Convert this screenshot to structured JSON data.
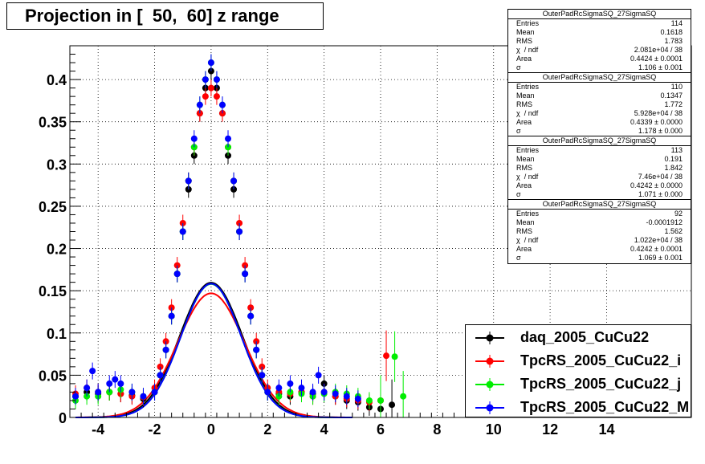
{
  "title": "Projection in [  50,  60] z range",
  "stats": [
    {
      "name": "OuterPadRcSigmaSQ_27SigmaSQ",
      "rows": [
        [
          "Entries",
          "114"
        ],
        [
          "Mean",
          "0.1618"
        ],
        [
          "RMS",
          "1.783"
        ],
        [
          "χ  / ndf",
          "2.081e+04 / 38"
        ],
        [
          "Area",
          "0.4424 ± 0.0001"
        ],
        [
          "σ",
          "1.106 ± 0.001"
        ]
      ]
    },
    {
      "name": "OuterPadRcSigmaSQ_27SigmaSQ",
      "rows": [
        [
          "Entries",
          "110"
        ],
        [
          "Mean",
          "0.1347"
        ],
        [
          "RMS",
          "1.772"
        ],
        [
          "χ  / ndf",
          "5.928e+04 / 38"
        ],
        [
          "Area",
          "0.4339 ± 0.0000"
        ],
        [
          "σ",
          "1.178 ± 0.000"
        ]
      ]
    },
    {
      "name": "OuterPadRcSigmaSQ_27SigmaSQ",
      "rows": [
        [
          "Entries",
          "113"
        ],
        [
          "Mean",
          "0.191"
        ],
        [
          "RMS",
          "1.842"
        ],
        [
          "χ  / ndf",
          "7.46e+04 / 38"
        ],
        [
          "Area",
          "0.4242 ± 0.0000"
        ],
        [
          "σ",
          "1.071 ± 0.000"
        ]
      ]
    },
    {
      "name": "OuterPadRcSigmaSQ_27SigmaSQ",
      "rows": [
        [
          "Entries",
          "92"
        ],
        [
          "Mean",
          "-0.0001912"
        ],
        [
          "RMS",
          "1.562"
        ],
        [
          "χ  / ndf",
          "1.022e+04 / 38"
        ],
        [
          "Area",
          "0.4242 ± 0.0001"
        ],
        [
          "σ",
          "1.069 ± 0.001"
        ]
      ]
    }
  ],
  "legend": [
    {
      "label": "daq_2005_CuCu22",
      "color": "#000000"
    },
    {
      "label": "TpcRS_2005_CuCu22_i",
      "color": "#ff0000"
    },
    {
      "label": "TpcRS_2005_CuCu22_j",
      "color": "#00ee00"
    },
    {
      "label": "TpcRS_2005_CuCu22_M",
      "color": "#0000ff"
    }
  ],
  "chart_data": {
    "type": "scatter",
    "title": "Projection in [  50,  60] z range",
    "xlabel": "",
    "ylabel": "",
    "xlim": [
      -5,
      17
    ],
    "ylim": [
      0,
      0.44
    ],
    "x_ticks": [
      -4,
      -2,
      0,
      2,
      4,
      6,
      8,
      10,
      12,
      14
    ],
    "y_ticks": [
      0,
      0.05,
      0.1,
      0.15,
      0.2,
      0.25,
      0.3,
      0.35,
      0.4
    ],
    "y_tick_labels": [
      "0",
      "0.05",
      "0.1",
      "0.15",
      "0.2",
      "0.25",
      "0.3",
      "0.35",
      "0.4"
    ],
    "grid": true,
    "legend_position": "bottom-right",
    "series": [
      {
        "name": "daq_2005_CuCu22",
        "color": "#000000",
        "fit": {
          "area": 0.4424,
          "sigma": 1.106
        },
        "x": [
          -4.8,
          -4.4,
          -4.0,
          -3.6,
          -3.2,
          -2.8,
          -2.4,
          -2.0,
          -1.8,
          -1.6,
          -1.4,
          -1.2,
          -1.0,
          -0.8,
          -0.6,
          -0.4,
          -0.2,
          0.0,
          0.2,
          0.4,
          0.6,
          0.8,
          1.0,
          1.2,
          1.4,
          1.6,
          1.8,
          2.0,
          2.4,
          2.8,
          3.2,
          3.6,
          4.0,
          4.4,
          4.8,
          5.2,
          5.6,
          6.0,
          6.4
        ],
        "y": [
          0.025,
          0.03,
          0.028,
          0.03,
          0.028,
          0.026,
          0.022,
          0.03,
          0.05,
          0.08,
          0.12,
          0.17,
          0.22,
          0.27,
          0.31,
          0.36,
          0.39,
          0.41,
          0.39,
          0.36,
          0.31,
          0.27,
          0.22,
          0.17,
          0.12,
          0.08,
          0.05,
          0.03,
          0.028,
          0.025,
          0.03,
          0.028,
          0.04,
          0.025,
          0.02,
          0.018,
          0.012,
          0.01,
          0.015
        ]
      },
      {
        "name": "TpcRS_2005_CuCu22_i",
        "color": "#ff0000",
        "fit": {
          "area": 0.4339,
          "sigma": 1.178
        },
        "x": [
          -4.8,
          -4.4,
          -4.0,
          -3.6,
          -3.2,
          -2.8,
          -2.4,
          -2.0,
          -1.8,
          -1.6,
          -1.4,
          -1.2,
          -1.0,
          -0.8,
          -0.6,
          -0.4,
          -0.2,
          0.0,
          0.2,
          0.4,
          0.6,
          0.8,
          1.0,
          1.2,
          1.4,
          1.6,
          1.8,
          2.0,
          2.4,
          2.8,
          3.2,
          3.6,
          4.0,
          4.4,
          4.8,
          5.2,
          5.6,
          6.0,
          6.2
        ],
        "y": [
          0.028,
          0.035,
          0.03,
          0.03,
          0.028,
          0.025,
          0.024,
          0.035,
          0.06,
          0.09,
          0.13,
          0.18,
          0.23,
          0.28,
          0.32,
          0.36,
          0.38,
          0.39,
          0.38,
          0.36,
          0.32,
          0.28,
          0.23,
          0.18,
          0.13,
          0.09,
          0.06,
          0.035,
          0.03,
          0.028,
          0.03,
          0.025,
          0.03,
          0.025,
          0.022,
          0.02,
          0.018,
          0.02,
          0.073
        ]
      },
      {
        "name": "TpcRS_2005_CuCu22_j",
        "color": "#00ee00",
        "fit": {
          "area": 0.4242,
          "sigma": 1.071
        },
        "x": [
          -4.8,
          -4.4,
          -4.0,
          -3.6,
          -3.2,
          -2.8,
          -2.4,
          -2.0,
          -1.8,
          -1.6,
          -1.4,
          -1.2,
          -1.0,
          -0.8,
          -0.6,
          -0.4,
          -0.2,
          0.0,
          0.2,
          0.4,
          0.6,
          0.8,
          1.0,
          1.2,
          1.4,
          1.6,
          1.8,
          2.0,
          2.4,
          2.8,
          3.2,
          3.6,
          4.0,
          4.4,
          4.8,
          5.2,
          5.6,
          6.0,
          6.5,
          6.8
        ],
        "y": [
          0.02,
          0.025,
          0.025,
          0.03,
          0.033,
          0.03,
          0.025,
          0.03,
          0.05,
          0.08,
          0.12,
          0.17,
          0.22,
          0.28,
          0.32,
          0.37,
          0.4,
          0.42,
          0.4,
          0.37,
          0.32,
          0.28,
          0.22,
          0.17,
          0.12,
          0.08,
          0.05,
          0.03,
          0.025,
          0.03,
          0.028,
          0.025,
          0.028,
          0.03,
          0.028,
          0.025,
          0.02,
          0.02,
          0.072,
          0.025
        ]
      },
      {
        "name": "TpcRS_2005_CuCu22_M",
        "color": "#0000ff",
        "fit": {
          "area": 0.4242,
          "sigma": 1.069
        },
        "x": [
          -4.8,
          -4.4,
          -4.2,
          -4.0,
          -3.6,
          -3.4,
          -3.2,
          -2.8,
          -2.4,
          -2.0,
          -1.8,
          -1.6,
          -1.4,
          -1.2,
          -1.0,
          -0.8,
          -0.6,
          -0.4,
          -0.2,
          0.0,
          0.2,
          0.4,
          0.6,
          0.8,
          1.0,
          1.2,
          1.4,
          1.6,
          1.8,
          2.0,
          2.4,
          2.8,
          3.2,
          3.6,
          3.8,
          4.0,
          4.4,
          4.8,
          5.2
        ],
        "y": [
          0.025,
          0.035,
          0.055,
          0.03,
          0.04,
          0.045,
          0.04,
          0.03,
          0.025,
          0.03,
          0.05,
          0.08,
          0.12,
          0.17,
          0.22,
          0.28,
          0.33,
          0.37,
          0.4,
          0.42,
          0.4,
          0.37,
          0.33,
          0.28,
          0.22,
          0.17,
          0.12,
          0.08,
          0.05,
          0.03,
          0.035,
          0.04,
          0.035,
          0.03,
          0.05,
          0.03,
          0.028,
          0.025,
          0.022
        ]
      }
    ]
  }
}
